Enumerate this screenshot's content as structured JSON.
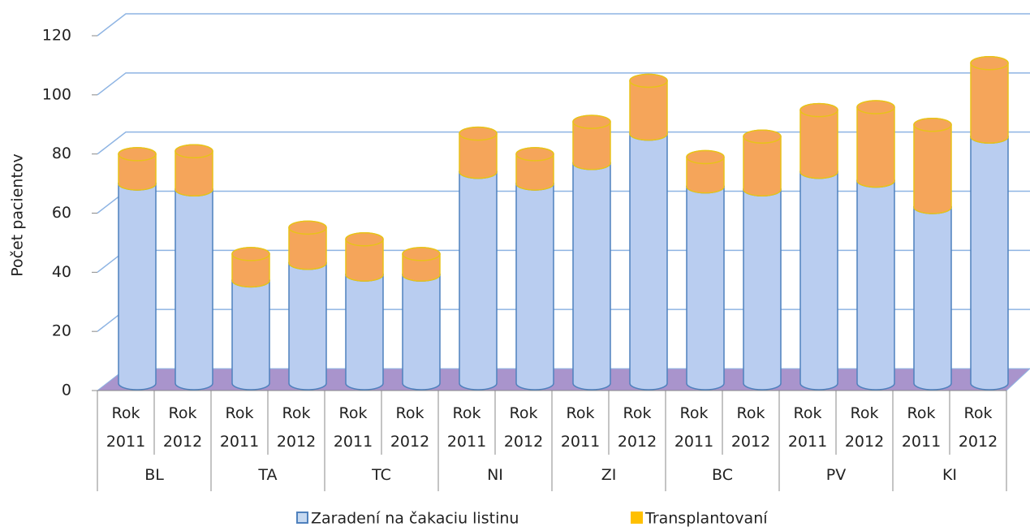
{
  "chart_data": {
    "type": "bar3d_stacked",
    "y_label": "Počet pacientov",
    "categories": [
      "Rok 2011",
      "Rok 2012",
      "Rok 2011",
      "Rok 2012",
      "Rok 2011",
      "Rok 2012",
      "Rok 2011",
      "Rok 2012",
      "Rok 2011",
      "Rok 2012",
      "Rok 2011",
      "Rok 2012",
      "Rok 2011",
      "Rok 2012",
      "Rok 2011",
      "Rok 2012"
    ],
    "groups": [
      "BL",
      "TA",
      "TC",
      "NI",
      "ZI",
      "BC",
      "PV",
      "KI"
    ],
    "series": [
      {
        "name": "Zaradení na čakaciu listinu",
        "color": "#b9cdf0",
        "values": [
          68,
          66,
          35,
          41,
          37,
          37,
          72,
          68,
          75,
          85,
          67,
          66,
          72,
          69,
          60,
          84
        ]
      },
      {
        "name": "Transplantovaní",
        "color": "#f5a55a",
        "values": [
          10,
          13,
          9,
          12,
          12,
          7,
          13,
          10,
          14,
          18,
          10,
          18,
          21,
          25,
          28,
          25
        ]
      }
    ],
    "ylim": [
      0,
      120
    ],
    "yticks": [
      0,
      20,
      40,
      60,
      80,
      100,
      120
    ],
    "grid": true
  }
}
